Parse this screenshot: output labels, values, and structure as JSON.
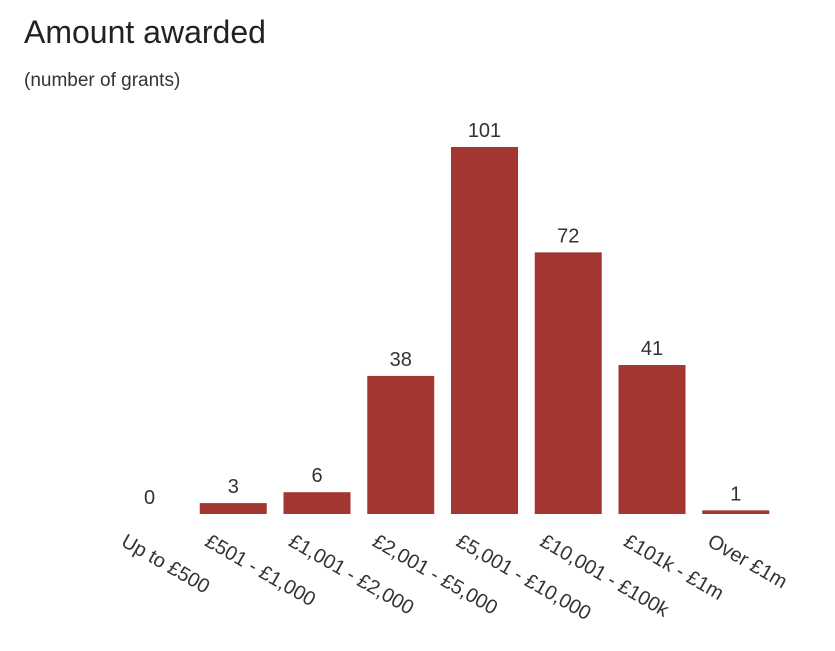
{
  "header": {
    "title": "Amount awarded",
    "subtitle": "(number of grants)"
  },
  "colors": {
    "bar": "#a33630"
  },
  "chart_data": {
    "type": "bar",
    "title": "Amount awarded",
    "subtitle": "(number of grants)",
    "categories": [
      "Up to £500",
      "£501 - £1,000",
      "£1,001 - £2,000",
      "£2,001 - £5,000",
      "£5,001 - £10,000",
      "£10,001 - £100k",
      "£101k - £1m",
      "Over £1m"
    ],
    "values": [
      0,
      3,
      6,
      38,
      101,
      72,
      41,
      1
    ],
    "xlabel": "",
    "ylabel": "",
    "ylim": [
      0,
      101
    ],
    "grid": false,
    "data_labels": true
  }
}
